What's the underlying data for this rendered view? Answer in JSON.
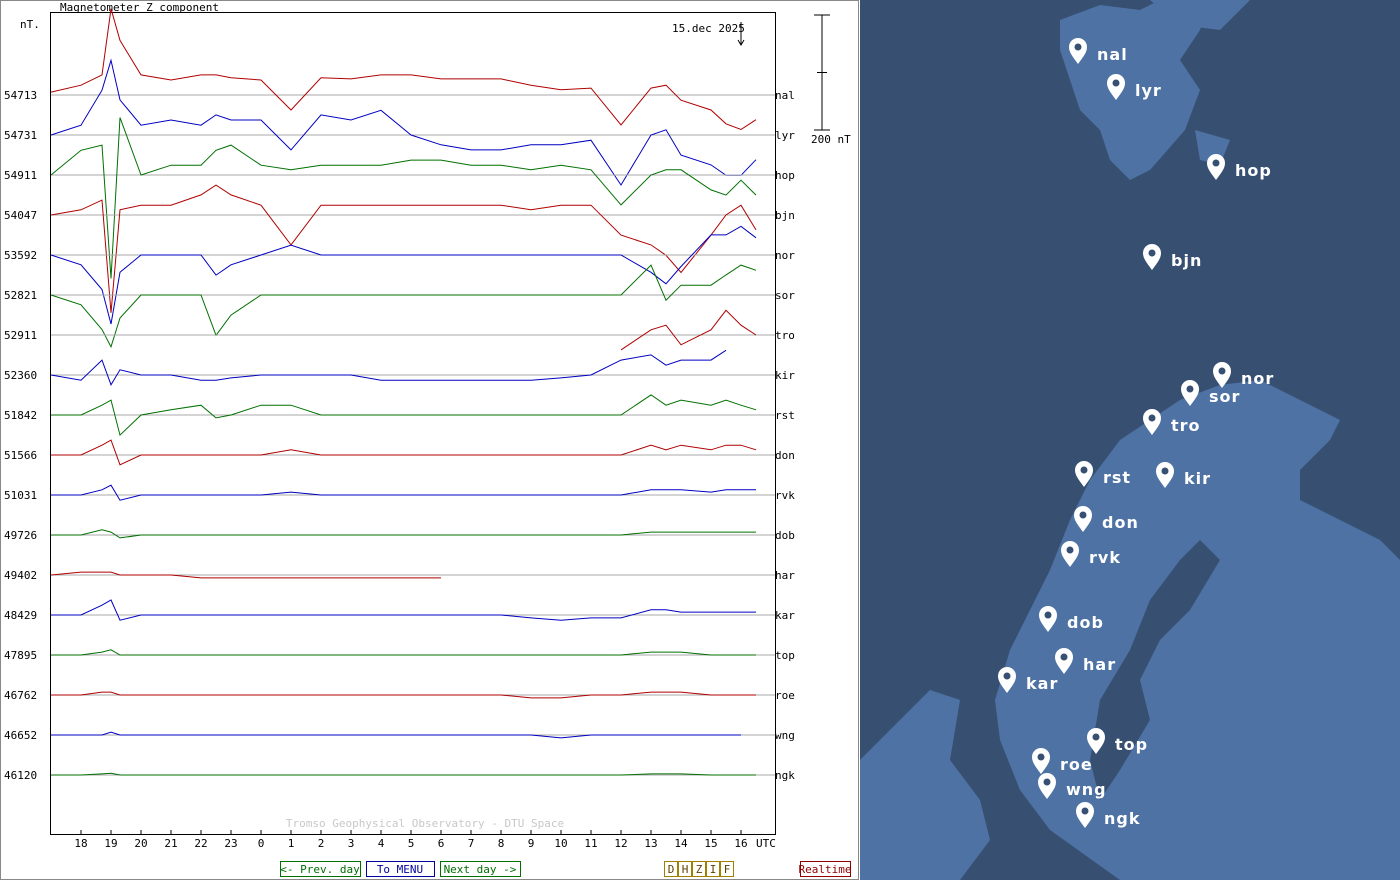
{
  "chart_data": {
    "type": "line",
    "title": "Magnetometer Z component",
    "unit_label": "nT.",
    "date": "15.dec 2025",
    "x_label": "UTC",
    "credit": "Tromso Geophysical Observatory - DTU Space",
    "scale_bar": {
      "value": 200,
      "label": "200 nT"
    },
    "xlim": [
      0,
      24
    ],
    "xticks": [
      {
        "value": 1,
        "label": "18"
      },
      {
        "value": 2,
        "label": "19"
      },
      {
        "value": 3,
        "label": "20"
      },
      {
        "value": 4,
        "label": "21"
      },
      {
        "value": 5,
        "label": "22"
      },
      {
        "value": 6,
        "label": "23"
      },
      {
        "value": 7,
        "label": "0"
      },
      {
        "value": 8,
        "label": "1"
      },
      {
        "value": 9,
        "label": "2"
      },
      {
        "value": 10,
        "label": "3"
      },
      {
        "value": 11,
        "label": "4"
      },
      {
        "value": 12,
        "label": "5"
      },
      {
        "value": 13,
        "label": "6"
      },
      {
        "value": 14,
        "label": "7"
      },
      {
        "value": 15,
        "label": "8"
      },
      {
        "value": 16,
        "label": "9"
      },
      {
        "value": 17,
        "label": "10"
      },
      {
        "value": 18,
        "label": "11"
      },
      {
        "value": 19,
        "label": "12"
      },
      {
        "value": 20,
        "label": "13"
      },
      {
        "value": 21,
        "label": "14"
      },
      {
        "value": 22,
        "label": "15"
      },
      {
        "value": 23,
        "label": "16"
      }
    ],
    "x": [
      0,
      1,
      1.7,
      2,
      2.3,
      3,
      4,
      5,
      5.5,
      6,
      7,
      8,
      9,
      10,
      11,
      12,
      13,
      14,
      15,
      16,
      17,
      18,
      19,
      20,
      20.5,
      21,
      22,
      22.5,
      23,
      23.5
    ],
    "series": [
      {
        "name": "nal",
        "baseline": 54713,
        "color": "#b00000",
        "values": [
          5,
          17,
          35,
          150,
          95,
          35,
          26,
          35,
          35,
          30,
          26,
          -26,
          30,
          28,
          35,
          35,
          28,
          28,
          28,
          17,
          9,
          12,
          -52,
          12,
          17,
          -9,
          -26,
          -50,
          -60,
          -43
        ]
      },
      {
        "name": "lyr",
        "baseline": 54731,
        "color": "#0000c0",
        "values": [
          0,
          17,
          78,
          130,
          61,
          17,
          26,
          17,
          35,
          26,
          26,
          -26,
          35,
          26,
          43,
          0,
          -17,
          -26,
          -26,
          -17,
          -17,
          -9,
          -87,
          0,
          9,
          -35,
          -52,
          -70,
          -70,
          -43
        ]
      },
      {
        "name": "hop",
        "baseline": 54911,
        "color": "#007000",
        "values": [
          0,
          43,
          52,
          -180,
          100,
          0,
          17,
          17,
          43,
          52,
          17,
          9,
          17,
          17,
          17,
          26,
          26,
          17,
          17,
          9,
          17,
          9,
          -52,
          0,
          9,
          9,
          -26,
          -35,
          -9,
          -35
        ]
      },
      {
        "name": "bjn",
        "baseline": 54047,
        "color": "#b00000",
        "values": [
          0,
          9,
          26,
          -170,
          9,
          17,
          17,
          35,
          52,
          35,
          17,
          -52,
          17,
          17,
          17,
          17,
          17,
          17,
          17,
          9,
          17,
          17,
          -35,
          -52,
          -70,
          -100,
          -35,
          0,
          17,
          -26
        ]
      },
      {
        "name": "nor",
        "baseline": 53592,
        "color": "#0000c0",
        "values": [
          0,
          -17,
          -60,
          -120,
          -30,
          0,
          0,
          0,
          -35,
          -17,
          0,
          17,
          0,
          0,
          0,
          0,
          0,
          0,
          0,
          0,
          0,
          0,
          0,
          -30,
          -50,
          -20,
          35,
          35,
          50,
          30
        ]
      },
      {
        "name": "sor",
        "baseline": 52821,
        "color": "#007000",
        "values": [
          0,
          -17,
          -60,
          -90,
          -40,
          0,
          0,
          0,
          -70,
          -35,
          0,
          0,
          0,
          0,
          0,
          0,
          0,
          0,
          0,
          0,
          0,
          0,
          0,
          52,
          -9,
          17,
          17,
          35,
          52,
          43
        ]
      },
      {
        "name": "tro",
        "baseline": 52911,
        "color": "#b00000",
        "values": [
          null,
          null,
          null,
          null,
          null,
          null,
          null,
          null,
          null,
          null,
          null,
          null,
          null,
          null,
          null,
          null,
          null,
          null,
          null,
          null,
          null,
          null,
          -26,
          9,
          17,
          -17,
          9,
          43,
          17,
          0
        ]
      },
      {
        "name": "kir",
        "baseline": 52360,
        "color": "#0000c0",
        "values": [
          0,
          -9,
          26,
          -17,
          9,
          0,
          0,
          -9,
          -9,
          -5,
          0,
          0,
          0,
          0,
          -9,
          -9,
          -9,
          -9,
          -9,
          -9,
          -5,
          0,
          26,
          35,
          17,
          26,
          26,
          43,
          null,
          null
        ]
      },
      {
        "name": "rst",
        "baseline": 51842,
        "color": "#007000",
        "values": [
          0,
          0,
          17,
          26,
          -35,
          0,
          9,
          17,
          -5,
          0,
          17,
          17,
          0,
          0,
          0,
          0,
          0,
          0,
          0,
          0,
          0,
          0,
          0,
          35,
          17,
          26,
          17,
          26,
          17,
          9
        ]
      },
      {
        "name": "don",
        "baseline": 51566,
        "color": "#b00000",
        "values": [
          0,
          0,
          17,
          26,
          -17,
          0,
          0,
          0,
          0,
          0,
          0,
          9,
          0,
          0,
          0,
          0,
          0,
          0,
          0,
          0,
          0,
          0,
          0,
          17,
          9,
          17,
          9,
          17,
          17,
          9
        ]
      },
      {
        "name": "rvk",
        "baseline": 51031,
        "color": "#0000c0",
        "values": [
          0,
          0,
          9,
          17,
          -9,
          0,
          0,
          0,
          0,
          0,
          0,
          5,
          0,
          0,
          0,
          0,
          0,
          0,
          0,
          0,
          0,
          0,
          0,
          9,
          9,
          9,
          5,
          9,
          9,
          9
        ]
      },
      {
        "name": "dob",
        "baseline": 49726,
        "color": "#007000",
        "values": [
          0,
          0,
          9,
          5,
          -5,
          0,
          0,
          0,
          0,
          0,
          0,
          0,
          0,
          0,
          0,
          0,
          0,
          0,
          0,
          0,
          0,
          0,
          0,
          5,
          5,
          5,
          5,
          5,
          5,
          5
        ]
      },
      {
        "name": "har",
        "baseline": 49402,
        "color": "#b00000",
        "values": [
          0,
          5,
          5,
          5,
          0,
          0,
          0,
          -5,
          -5,
          -5,
          -5,
          -5,
          -5,
          -5,
          -5,
          -5,
          -5,
          null,
          null,
          null,
          null,
          null,
          null,
          null,
          null,
          null,
          null,
          null,
          null,
          null
        ]
      },
      {
        "name": "kar",
        "baseline": 48429,
        "color": "#0000c0",
        "values": [
          0,
          0,
          17,
          26,
          -9,
          0,
          0,
          0,
          0,
          0,
          0,
          0,
          0,
          0,
          0,
          0,
          0,
          0,
          0,
          -5,
          -9,
          -5,
          -5,
          9,
          9,
          5,
          5,
          5,
          5,
          5
        ]
      },
      {
        "name": "top",
        "baseline": 47895,
        "color": "#007000",
        "values": [
          0,
          0,
          5,
          9,
          0,
          0,
          0,
          0,
          0,
          0,
          0,
          0,
          0,
          0,
          0,
          0,
          0,
          0,
          0,
          0,
          0,
          0,
          0,
          5,
          5,
          5,
          0,
          0,
          0,
          0
        ]
      },
      {
        "name": "roe",
        "baseline": 46762,
        "color": "#b00000",
        "values": [
          0,
          0,
          5,
          5,
          0,
          0,
          0,
          0,
          0,
          0,
          0,
          0,
          0,
          0,
          0,
          0,
          0,
          0,
          0,
          -5,
          -5,
          0,
          0,
          5,
          5,
          5,
          0,
          0,
          0,
          0
        ]
      },
      {
        "name": "wng",
        "baseline": 46652,
        "color": "#0000c0",
        "values": [
          0,
          0,
          0,
          5,
          0,
          0,
          0,
          0,
          0,
          0,
          0,
          0,
          0,
          0,
          0,
          0,
          0,
          0,
          0,
          0,
          -5,
          0,
          0,
          0,
          0,
          0,
          0,
          0,
          0,
          null
        ]
      },
      {
        "name": "ngk",
        "baseline": 46120,
        "color": "#007000",
        "values": [
          0,
          0,
          2,
          3,
          0,
          0,
          0,
          0,
          0,
          0,
          0,
          0,
          0,
          0,
          0,
          0,
          0,
          0,
          0,
          0,
          0,
          0,
          0,
          2,
          2,
          2,
          0,
          0,
          0,
          0
        ]
      }
    ]
  },
  "ui": {
    "buttons": [
      "<- Prev. day",
      "To MENU",
      "Next day ->"
    ],
    "components": [
      "D",
      "H",
      "Z",
      "I",
      "F"
    ],
    "realtime": "Realtime"
  }
}
